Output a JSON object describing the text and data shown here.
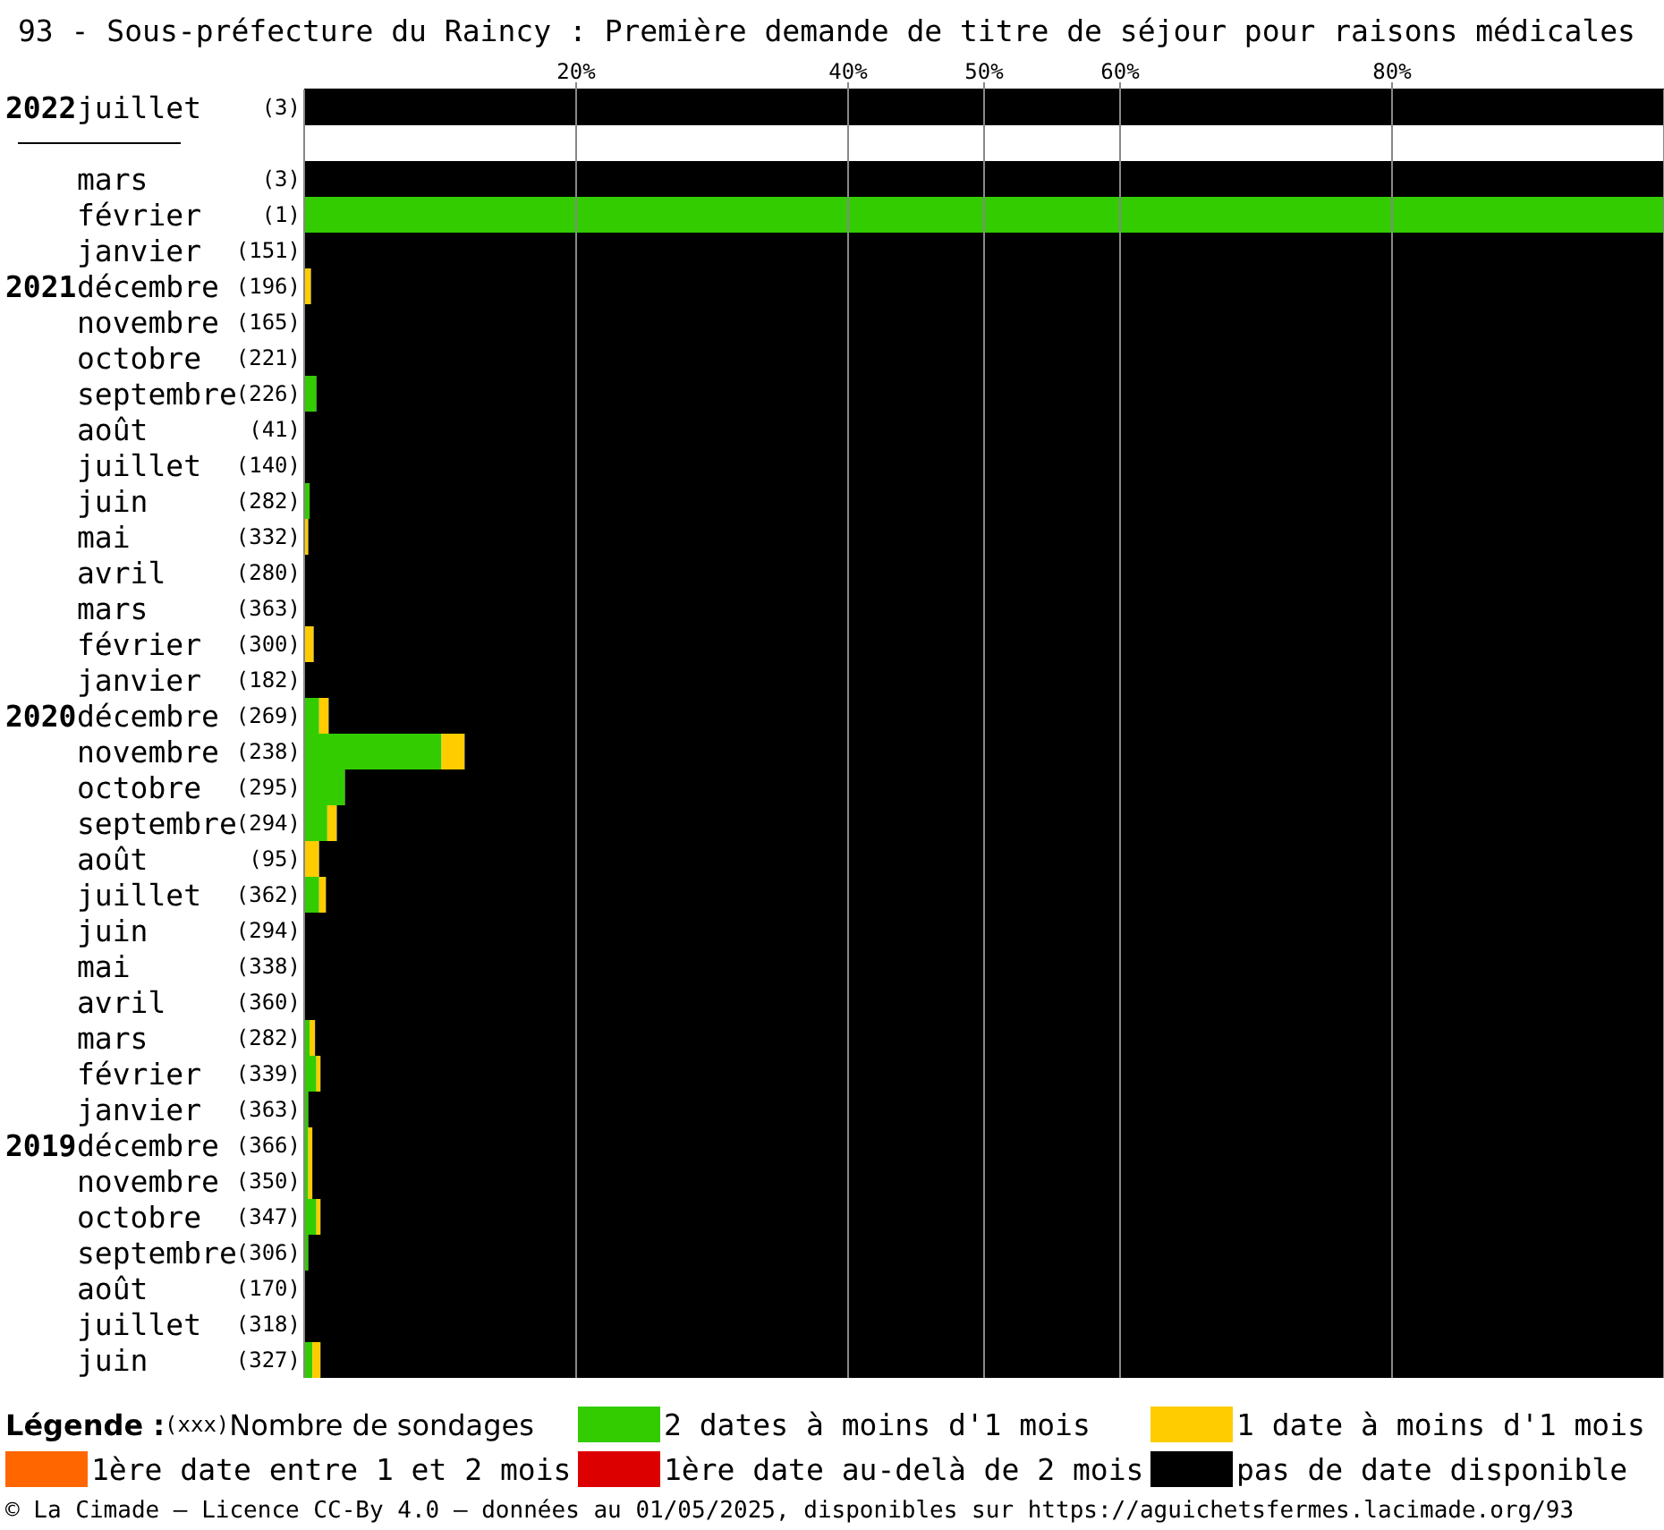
{
  "chart_data": {
    "type": "bar",
    "orientation": "horizontal",
    "stacked": true,
    "title": "93 - Sous-préfecture du Raincy : Première demande de titre de séjour pour raisons médicales",
    "categories": [
      "2022juillet (3)",
      null,
      "mars (3)",
      "février (1)",
      "janvier (151)",
      "2021décembre (196)",
      "novembre (165)",
      "octobre (221)",
      "septembre(226)",
      "août (41)",
      "juillet (140)",
      "juin (282)",
      "mai (332)",
      "avril (280)",
      "mars (363)",
      "février (300)",
      "janvier (182)",
      "2020décembre (269)",
      "novembre (238)",
      "octobre (295)",
      "septembre(294)",
      "août (95)",
      "juillet (362)",
      "juin (294)",
      "mai (338)",
      "avril (360)",
      "mars (282)",
      "février (339)",
      "janvier (363)",
      "2019décembre (366)",
      "novembre (350)",
      "octobre (347)",
      "septembre(306)",
      "août (170)",
      "juillet (318)",
      "juin (327)"
    ],
    "series": [
      {
        "name": "2 dates à moins d'1 mois",
        "color": "#33cc00",
        "values": [
          0,
          null,
          0,
          100,
          0,
          0,
          0,
          0,
          0.9,
          0,
          0,
          0.4,
          0,
          0,
          0,
          0,
          0,
          1.1,
          10.1,
          3.0,
          1.7,
          0,
          1.1,
          0,
          0,
          0,
          0.4,
          0.9,
          0.3,
          0.3,
          0.3,
          0.9,
          0.3,
          0,
          0,
          0.6
        ]
      },
      {
        "name": "1 date à moins d'1 mois",
        "color": "#ffcc00",
        "values": [
          0,
          null,
          0,
          0,
          0,
          0.5,
          0,
          0,
          0,
          0,
          0,
          0,
          0.3,
          0,
          0,
          0.7,
          0,
          0.7,
          1.7,
          0,
          0.7,
          1.1,
          0.5,
          0,
          0,
          0,
          0.4,
          0.3,
          0,
          0.3,
          0.3,
          0.3,
          0,
          0,
          0,
          0.6
        ]
      },
      {
        "name": "1ère date entre 1 et 2 mois",
        "color": "#ff6600",
        "values": [
          0,
          null,
          0,
          0,
          0,
          0,
          0,
          0,
          0,
          0,
          0,
          0,
          0,
          0,
          0,
          0,
          0,
          0,
          0,
          0,
          0,
          0,
          0,
          0,
          0,
          0,
          0,
          0,
          0,
          0,
          0,
          0,
          0,
          0,
          0,
          0
        ]
      },
      {
        "name": "1ère date au-delà de 2 mois",
        "color": "#dd0000",
        "values": [
          0,
          null,
          0,
          0,
          0,
          0,
          0,
          0,
          0,
          0,
          0,
          0,
          0,
          0,
          0,
          0,
          0,
          0,
          0,
          0,
          0,
          0,
          0,
          0,
          0,
          0,
          0,
          0,
          0,
          0,
          0,
          0,
          0,
          0,
          0,
          0
        ]
      },
      {
        "name": "pas de date disponible",
        "color": "#000000",
        "values": [
          100,
          null,
          100,
          0,
          100,
          99.5,
          100,
          100,
          99.1,
          100,
          100,
          99.6,
          99.7,
          100,
          100,
          99.3,
          100,
          98.2,
          88.2,
          97.0,
          97.6,
          98.9,
          98.4,
          100,
          100,
          100,
          99.2,
          98.8,
          99.7,
          99.4,
          99.4,
          98.8,
          99.7,
          100,
          100,
          98.8
        ]
      }
    ],
    "xlim": [
      0,
      100
    ],
    "xticks": [
      {
        "value": 20,
        "label": "20%"
      },
      {
        "value": 40,
        "label": "40%"
      },
      {
        "value": 50,
        "label": "50%"
      },
      {
        "value": 60,
        "label": "60%"
      },
      {
        "value": 80,
        "label": "80%"
      }
    ],
    "grid": "x",
    "legend": "bottom",
    "legend_title": "Légende :",
    "annotations": [
      "(xxx)Nombre de sondages",
      "© La Cimade — Licence CC-By 4.0 — données au 01/05/2025, disponibles sur https://aguichetsfermes.lacimade.org/93"
    ]
  }
}
